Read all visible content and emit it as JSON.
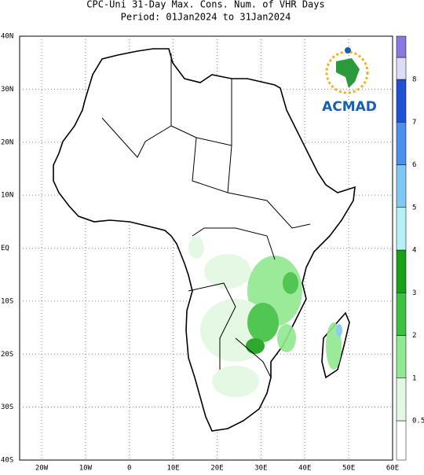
{
  "title": "CPC-Uni 31-Day Max. Cons. Num. of VHR Days",
  "subtitle": "Period: 01Jan2024 to 31Jan2024",
  "lat_labels": [
    "40N",
    "30N",
    "20N",
    "10N",
    "EQ",
    "10S",
    "20S",
    "30S",
    "40S"
  ],
  "lon_labels": [
    "20W",
    "10W",
    "0",
    "10E",
    "20E",
    "30E",
    "40E",
    "50E",
    "60E"
  ],
  "colorbar": {
    "labels": [
      "0.5",
      "1",
      "2",
      "3",
      "4",
      "5",
      "6",
      "7",
      "8"
    ],
    "colors": [
      "#ffffff",
      "#e2f8e2",
      "#90e890",
      "#40c040",
      "#18a018",
      "#b4f0f4",
      "#80c8f4",
      "#4a90ec",
      "#2050d8",
      "#dcdcf4",
      "#8a78e0",
      "#5a48c8"
    ]
  },
  "logo": "ACMAD"
}
